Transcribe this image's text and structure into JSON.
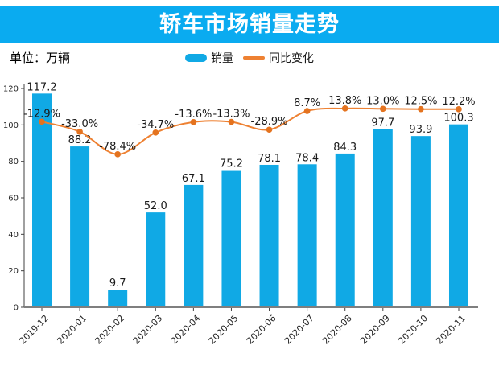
{
  "header": {
    "title": "轿车市场销量走势",
    "background": "#0aabf0",
    "text_color": "#ffffff"
  },
  "unit_label": "单位：万辆",
  "legend": [
    {
      "label": "销量",
      "type": "bar",
      "color": "#10a9e5"
    },
    {
      "label": "同比变化",
      "type": "line",
      "color": "#ee8132"
    }
  ],
  "chart_data": {
    "type": "bar",
    "title": "轿车市场销量走势",
    "unit": "万辆",
    "categories": [
      "2019-12",
      "2020-01",
      "2020-02",
      "2020-03",
      "2020-04",
      "2020-05",
      "2020-06",
      "2020-07",
      "2020-08",
      "2020-09",
      "2020-10",
      "2020-11"
    ],
    "series": [
      {
        "name": "销量",
        "type": "bar",
        "color": "#10a9e5",
        "axis": "left",
        "values": [
          117.2,
          88.2,
          9.7,
          52.0,
          67.1,
          75.2,
          78.1,
          78.4,
          84.3,
          97.7,
          93.9,
          100.3
        ],
        "labels": [
          "117.2",
          "88.2",
          "9.7",
          "52.0",
          "67.1",
          "75.2",
          "78.1",
          "78.4",
          "84.3",
          "97.7",
          "93.9",
          "100.3"
        ]
      },
      {
        "name": "同比变化",
        "type": "line",
        "color": "#ee8132",
        "marker_color": "#e4731f",
        "axis": "right-hidden",
        "values_percent": [
          -12.9,
          -33.0,
          -78.4,
          -34.7,
          -13.6,
          -13.3,
          -28.9,
          8.7,
          13.8,
          13.0,
          12.5,
          12.2
        ],
        "labels": [
          "-12.9%",
          "-33.0%",
          "-78.4%",
          "-34.7%",
          "-13.6%",
          "-13.3%",
          "-28.9%",
          "8.7%",
          "13.8%",
          "13.0%",
          "12.5%",
          "12.2%"
        ]
      }
    ],
    "y_axis": {
      "range": [
        0,
        120
      ],
      "ticks": [
        0,
        20,
        40,
        60,
        80,
        100,
        120
      ]
    },
    "y2_axis": {
      "visible": false,
      "range": [
        -386,
        54
      ]
    },
    "grid": false,
    "legend_position": "top-center",
    "x_tick_rotation": -45,
    "label_color": "#1a1a1a",
    "tick_color": "#262626",
    "spine_color": "#404040",
    "baseline_color": "#7f7f7f"
  }
}
